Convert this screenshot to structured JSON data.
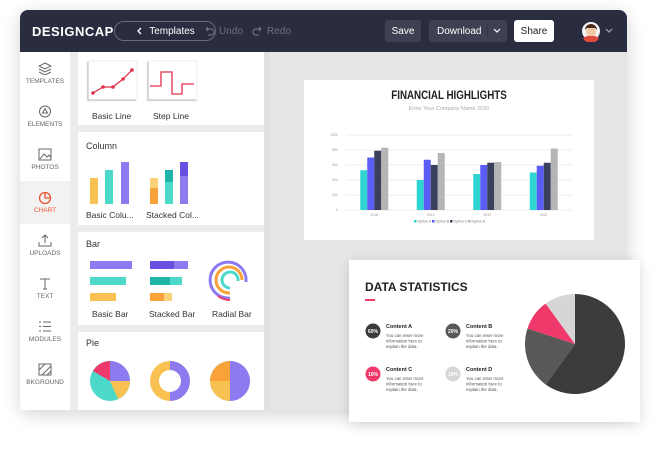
{
  "header": {
    "logo": "DESIGNCAP",
    "back_button": "Templates",
    "undo": "Undo",
    "redo": "Redo",
    "save": "Save",
    "download": "Download",
    "share": "Share"
  },
  "sidebar": {
    "items": [
      "TEMPLATES",
      "ELEMENTS",
      "PHOTOS",
      "CHART",
      "UPLOADS",
      "TEXT",
      "MODULES",
      "BKGROUND"
    ],
    "active_index": 3
  },
  "panel": {
    "line": {
      "items": [
        "Basic Line",
        "Step Line"
      ]
    },
    "column": {
      "title": "Column",
      "items": [
        "Basic Colu...",
        "Stacked Col..."
      ]
    },
    "bar": {
      "title": "Bar",
      "items": [
        "Basic Bar",
        "Stacked Bar",
        "Radial Bar"
      ]
    },
    "pie": {
      "title": "Pie"
    }
  },
  "canvas": {
    "financial": {
      "title": "FINANCIAL HIGHLIGHTS",
      "subtitle": "Enter Your Company Name 2020",
      "chart": {
        "type": "bar",
        "categories": [
          "2018",
          "2019",
          "2020",
          "2021"
        ],
        "series": [
          {
            "name": "Option A",
            "color": "#2fd5d0",
            "values": [
              530,
              400,
              480,
              500
            ]
          },
          {
            "name": "Option B",
            "color": "#5b5bf5",
            "values": [
              700,
              670,
              600,
              590
            ]
          },
          {
            "name": "Option C",
            "color": "#3a3f5c",
            "values": [
              790,
              600,
              630,
              630
            ]
          },
          {
            "name": "Option D",
            "color": "#b5b5b5",
            "values": [
              830,
              760,
              640,
              820
            ]
          }
        ],
        "ylim": [
          0,
          1000
        ],
        "yticks": [
          0,
          200,
          400,
          600,
          800,
          1000
        ],
        "grid": true
      }
    },
    "statistics": {
      "title": "DATA STATISTICS",
      "items": [
        {
          "title": "Content A",
          "text": "You can enter more information here to explain the data."
        },
        {
          "title": "Content B",
          "text": "You can enter more information here to explain the data."
        },
        {
          "title": "Content C",
          "text": "You can enter more information here to explain the data."
        },
        {
          "title": "Content D",
          "text": "You can enter more information here to explain the data."
        }
      ],
      "pie": {
        "type": "pie",
        "values": [
          60,
          20,
          10,
          10
        ],
        "value_labels": [
          "60%",
          "20%",
          "10%",
          "10%"
        ],
        "colors": [
          "#3c3c3c",
          "#585858",
          "#f0396a",
          "#d6d6d6"
        ]
      }
    }
  }
}
